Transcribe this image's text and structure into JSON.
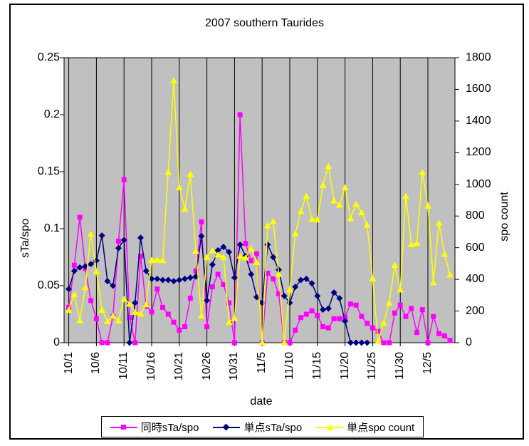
{
  "title": "2007 southern Taurides",
  "axes": {
    "left": {
      "label": "sTa/spo",
      "ticks": [
        "0.25",
        "0.2",
        "0.15",
        "0.1",
        "0.05",
        "0"
      ]
    },
    "right": {
      "label": "spo count",
      "ticks": [
        "1800",
        "1600",
        "1400",
        "1200",
        "1000",
        "800",
        "600",
        "400",
        "200",
        "0"
      ]
    },
    "x": {
      "label": "date",
      "tick_labels": [
        "10/1",
        "10/6",
        "10/11",
        "10/16",
        "10/21",
        "10/26",
        "10/31",
        "11/5",
        "11/10",
        "11/15",
        "11/20",
        "11/25",
        "11/30",
        "12/5"
      ]
    }
  },
  "colors": {
    "plot_bg": "#C0C0C0",
    "grid": "#000000",
    "series1": "#FF00FF",
    "series2": "#000080",
    "series3": "#FFFF00"
  },
  "chart_data": {
    "type": "line",
    "title": "2007 southern Taurides",
    "xlabel": "date",
    "ylabel_left": "sTa/spo",
    "ylabel_right": "spo count",
    "ylim_left": [
      0,
      0.25
    ],
    "ylim_right": [
      0,
      1800
    ],
    "grid": "vertical-only",
    "legend_position": "bottom",
    "x": [
      "10/1",
      "10/2",
      "10/3",
      "10/4",
      "10/5",
      "10/6",
      "10/7",
      "10/8",
      "10/9",
      "10/10",
      "10/11",
      "10/12",
      "10/13",
      "10/14",
      "10/15",
      "10/16",
      "10/17",
      "10/18",
      "10/19",
      "10/20",
      "10/21",
      "10/22",
      "10/23",
      "10/24",
      "10/25",
      "10/26",
      "10/27",
      "10/28",
      "10/29",
      "10/30",
      "10/31",
      "11/1",
      "11/2",
      "11/3",
      "11/4",
      "11/5",
      "11/6",
      "11/7",
      "11/8",
      "11/9",
      "11/10",
      "11/11",
      "11/12",
      "11/13",
      "11/14",
      "11/15",
      "11/16",
      "11/17",
      "11/18",
      "11/19",
      "11/20",
      "11/21",
      "11/22",
      "11/23",
      "11/24",
      "11/25",
      "11/26",
      "11/27",
      "11/28",
      "11/29",
      "11/30",
      "12/1",
      "12/2",
      "12/3",
      "12/4",
      "12/5",
      "12/6",
      "12/7",
      "12/8",
      "12/9"
    ],
    "series": [
      {
        "name": "同時sTa/spo",
        "axis": "left",
        "marker": "square",
        "color": "#FF00FF",
        "values": [
          0.031,
          0.068,
          0.11,
          0.065,
          0.037,
          0.021,
          0,
          0,
          0.023,
          0.089,
          0.143,
          0.022,
          0,
          0.076,
          0.032,
          0.027,
          0.047,
          0.031,
          0.025,
          0.018,
          0.011,
          0.014,
          0.039,
          0.063,
          0.106,
          0.014,
          0.049,
          0.06,
          0.051,
          0.035,
          0,
          0.2,
          0.087,
          0.072,
          0.078,
          0,
          0.061,
          0.056,
          0.043,
          0,
          0,
          0.011,
          0.022,
          0.025,
          0.028,
          0.024,
          0.014,
          0.013,
          0.021,
          0.021,
          0.022,
          0.034,
          0.033,
          0.023,
          0.017,
          0.013,
          0.01,
          0,
          0,
          0.026,
          0.033,
          0.023,
          0.03,
          0.009,
          0.029,
          0,
          0.023,
          0.008,
          0.006,
          0.002
        ]
      },
      {
        "name": "単点sTa/spo",
        "axis": "left",
        "marker": "diamond",
        "color": "#000080",
        "values": [
          0.047,
          0.063,
          0.066,
          0.067,
          0.069,
          0.072,
          0.094,
          0.054,
          0.05,
          0.083,
          0.09,
          0,
          0.035,
          0.092,
          0.063,
          0.056,
          0.056,
          0.055,
          0.055,
          0.054,
          0.055,
          0.056,
          0.057,
          0.058,
          0.0935,
          0.037,
          0.0685,
          0.081,
          0.084,
          0.0795,
          0.057,
          0.086,
          0.076,
          0.06,
          0.04,
          0.035,
          0.086,
          0.075,
          0.064,
          0.041,
          0.035,
          0.049,
          0.055,
          0.056,
          0.052,
          0.041,
          0.029,
          0.03,
          0.044,
          0.039,
          0.019,
          0,
          0,
          0,
          0,
          null,
          null,
          null,
          null,
          null,
          null,
          null,
          null,
          null,
          null,
          null,
          null,
          null,
          null,
          null
        ]
      },
      {
        "name": "単点spo count",
        "axis": "right",
        "marker": "triangle",
        "color": "#FFFF00",
        "values": [
          207,
          305,
          140,
          350,
          687,
          450,
          207,
          135,
          170,
          140,
          276,
          246,
          194,
          183,
          242,
          522,
          524,
          520,
          1078,
          1656,
          981,
          845,
          1065,
          580,
          171,
          541,
          583,
          556,
          541,
          130,
          155,
          548,
          537,
          595,
          508,
          3,
          740,
          766,
          433,
          3,
          336,
          689,
          831,
          926,
          782,
          778,
          996,
          1116,
          898,
          871,
          981,
          786,
          876,
          823,
          744,
          406,
          10,
          126,
          253,
          490,
          336,
          926,
          621,
          629,
          1076,
          865,
          380,
          757,
          560,
          430
        ]
      }
    ]
  }
}
